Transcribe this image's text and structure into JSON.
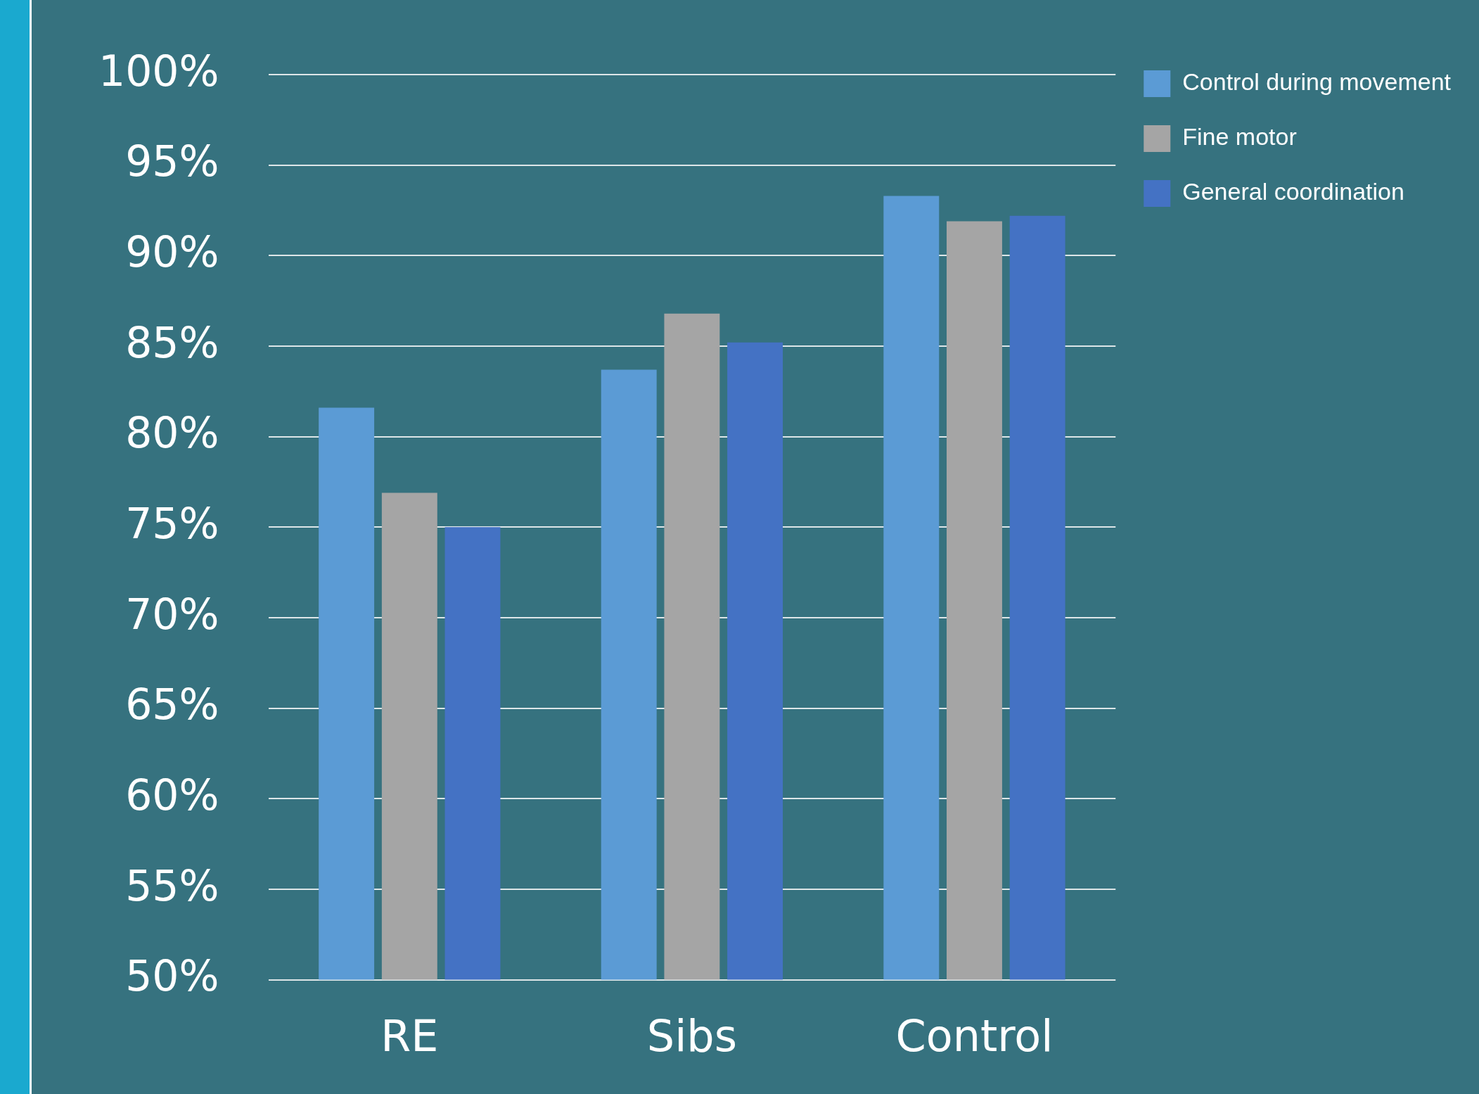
{
  "chart_data": {
    "type": "bar",
    "categories": [
      "RE",
      "Sibs",
      "Control"
    ],
    "series": [
      {
        "name": "Control during movement",
        "color": "#5b9bd5",
        "values": [
          81.6,
          83.7,
          93.3
        ]
      },
      {
        "name": "Fine motor",
        "color": "#a5a5a5",
        "values": [
          76.9,
          86.8,
          91.9
        ]
      },
      {
        "name": "General coordination",
        "color": "#4472c4",
        "values": [
          75.0,
          85.2,
          92.2
        ]
      }
    ],
    "ylim": [
      50,
      100
    ],
    "yticks": [
      {
        "value": 50,
        "label": "50%"
      },
      {
        "value": 55,
        "label": "55%"
      },
      {
        "value": 60,
        "label": "60%"
      },
      {
        "value": 65,
        "label": "65%"
      },
      {
        "value": 70,
        "label": "70%"
      },
      {
        "value": 75,
        "label": "75%"
      },
      {
        "value": 80,
        "label": "80%"
      },
      {
        "value": 85,
        "label": "85%"
      },
      {
        "value": 90,
        "label": "90%"
      },
      {
        "value": 95,
        "label": "95%"
      },
      {
        "value": 100,
        "label": "100%"
      }
    ],
    "grid": "y",
    "legend": "top right"
  }
}
